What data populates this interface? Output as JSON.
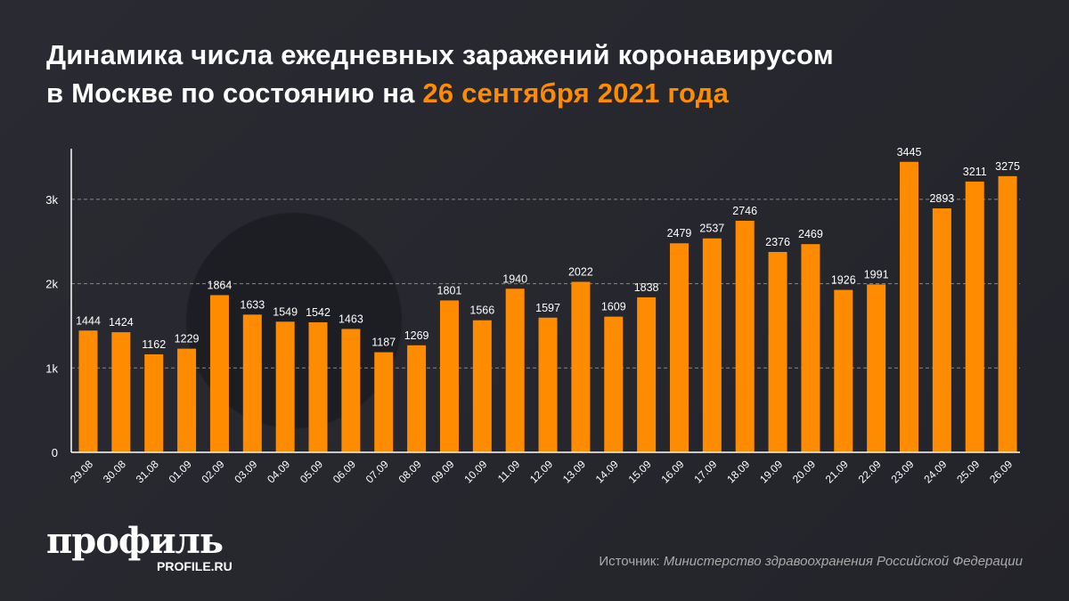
{
  "title": {
    "line1": "Динамика числа ежедневных заражений коронавирусом",
    "line2_prefix": "в Москве по состоянию на ",
    "line2_highlight": "26 сентября 2021 года"
  },
  "colors": {
    "bar": "#ff8c00",
    "highlight": "#ff8c00",
    "background": "#26272e"
  },
  "chart_data": {
    "type": "bar",
    "categories": [
      "29.08",
      "30.08",
      "31.08",
      "01.09",
      "02.09",
      "03.09",
      "04.09",
      "05.09",
      "06.09",
      "07.09",
      "08.09",
      "09.09",
      "10.09",
      "11.09",
      "12.09",
      "13.09",
      "14.09",
      "15.09",
      "16.09",
      "17.09",
      "18.09",
      "19.09",
      "20.09",
      "21.09",
      "22.09",
      "23.09",
      "24.09",
      "25.09",
      "26.09"
    ],
    "values": [
      1444,
      1424,
      1162,
      1229,
      1864,
      1633,
      1549,
      1542,
      1463,
      1187,
      1269,
      1801,
      1566,
      1940,
      1597,
      2022,
      1609,
      1838,
      2479,
      2537,
      2746,
      2376,
      2469,
      1926,
      1991,
      3445,
      2893,
      3211,
      3275
    ],
    "yticks": [
      {
        "v": 0,
        "label": "0"
      },
      {
        "v": 1000,
        "label": "1k"
      },
      {
        "v": 2000,
        "label": "2k"
      },
      {
        "v": 3000,
        "label": "3k"
      }
    ],
    "ylim": [
      0,
      3600
    ],
    "grid": true,
    "data_labels": true
  },
  "footer": {
    "logo_ru": "профиль",
    "logo_en": "PROFILE.RU",
    "source_label": "Источник: ",
    "source": "Министерство здравоохранения Российской Федерации"
  }
}
